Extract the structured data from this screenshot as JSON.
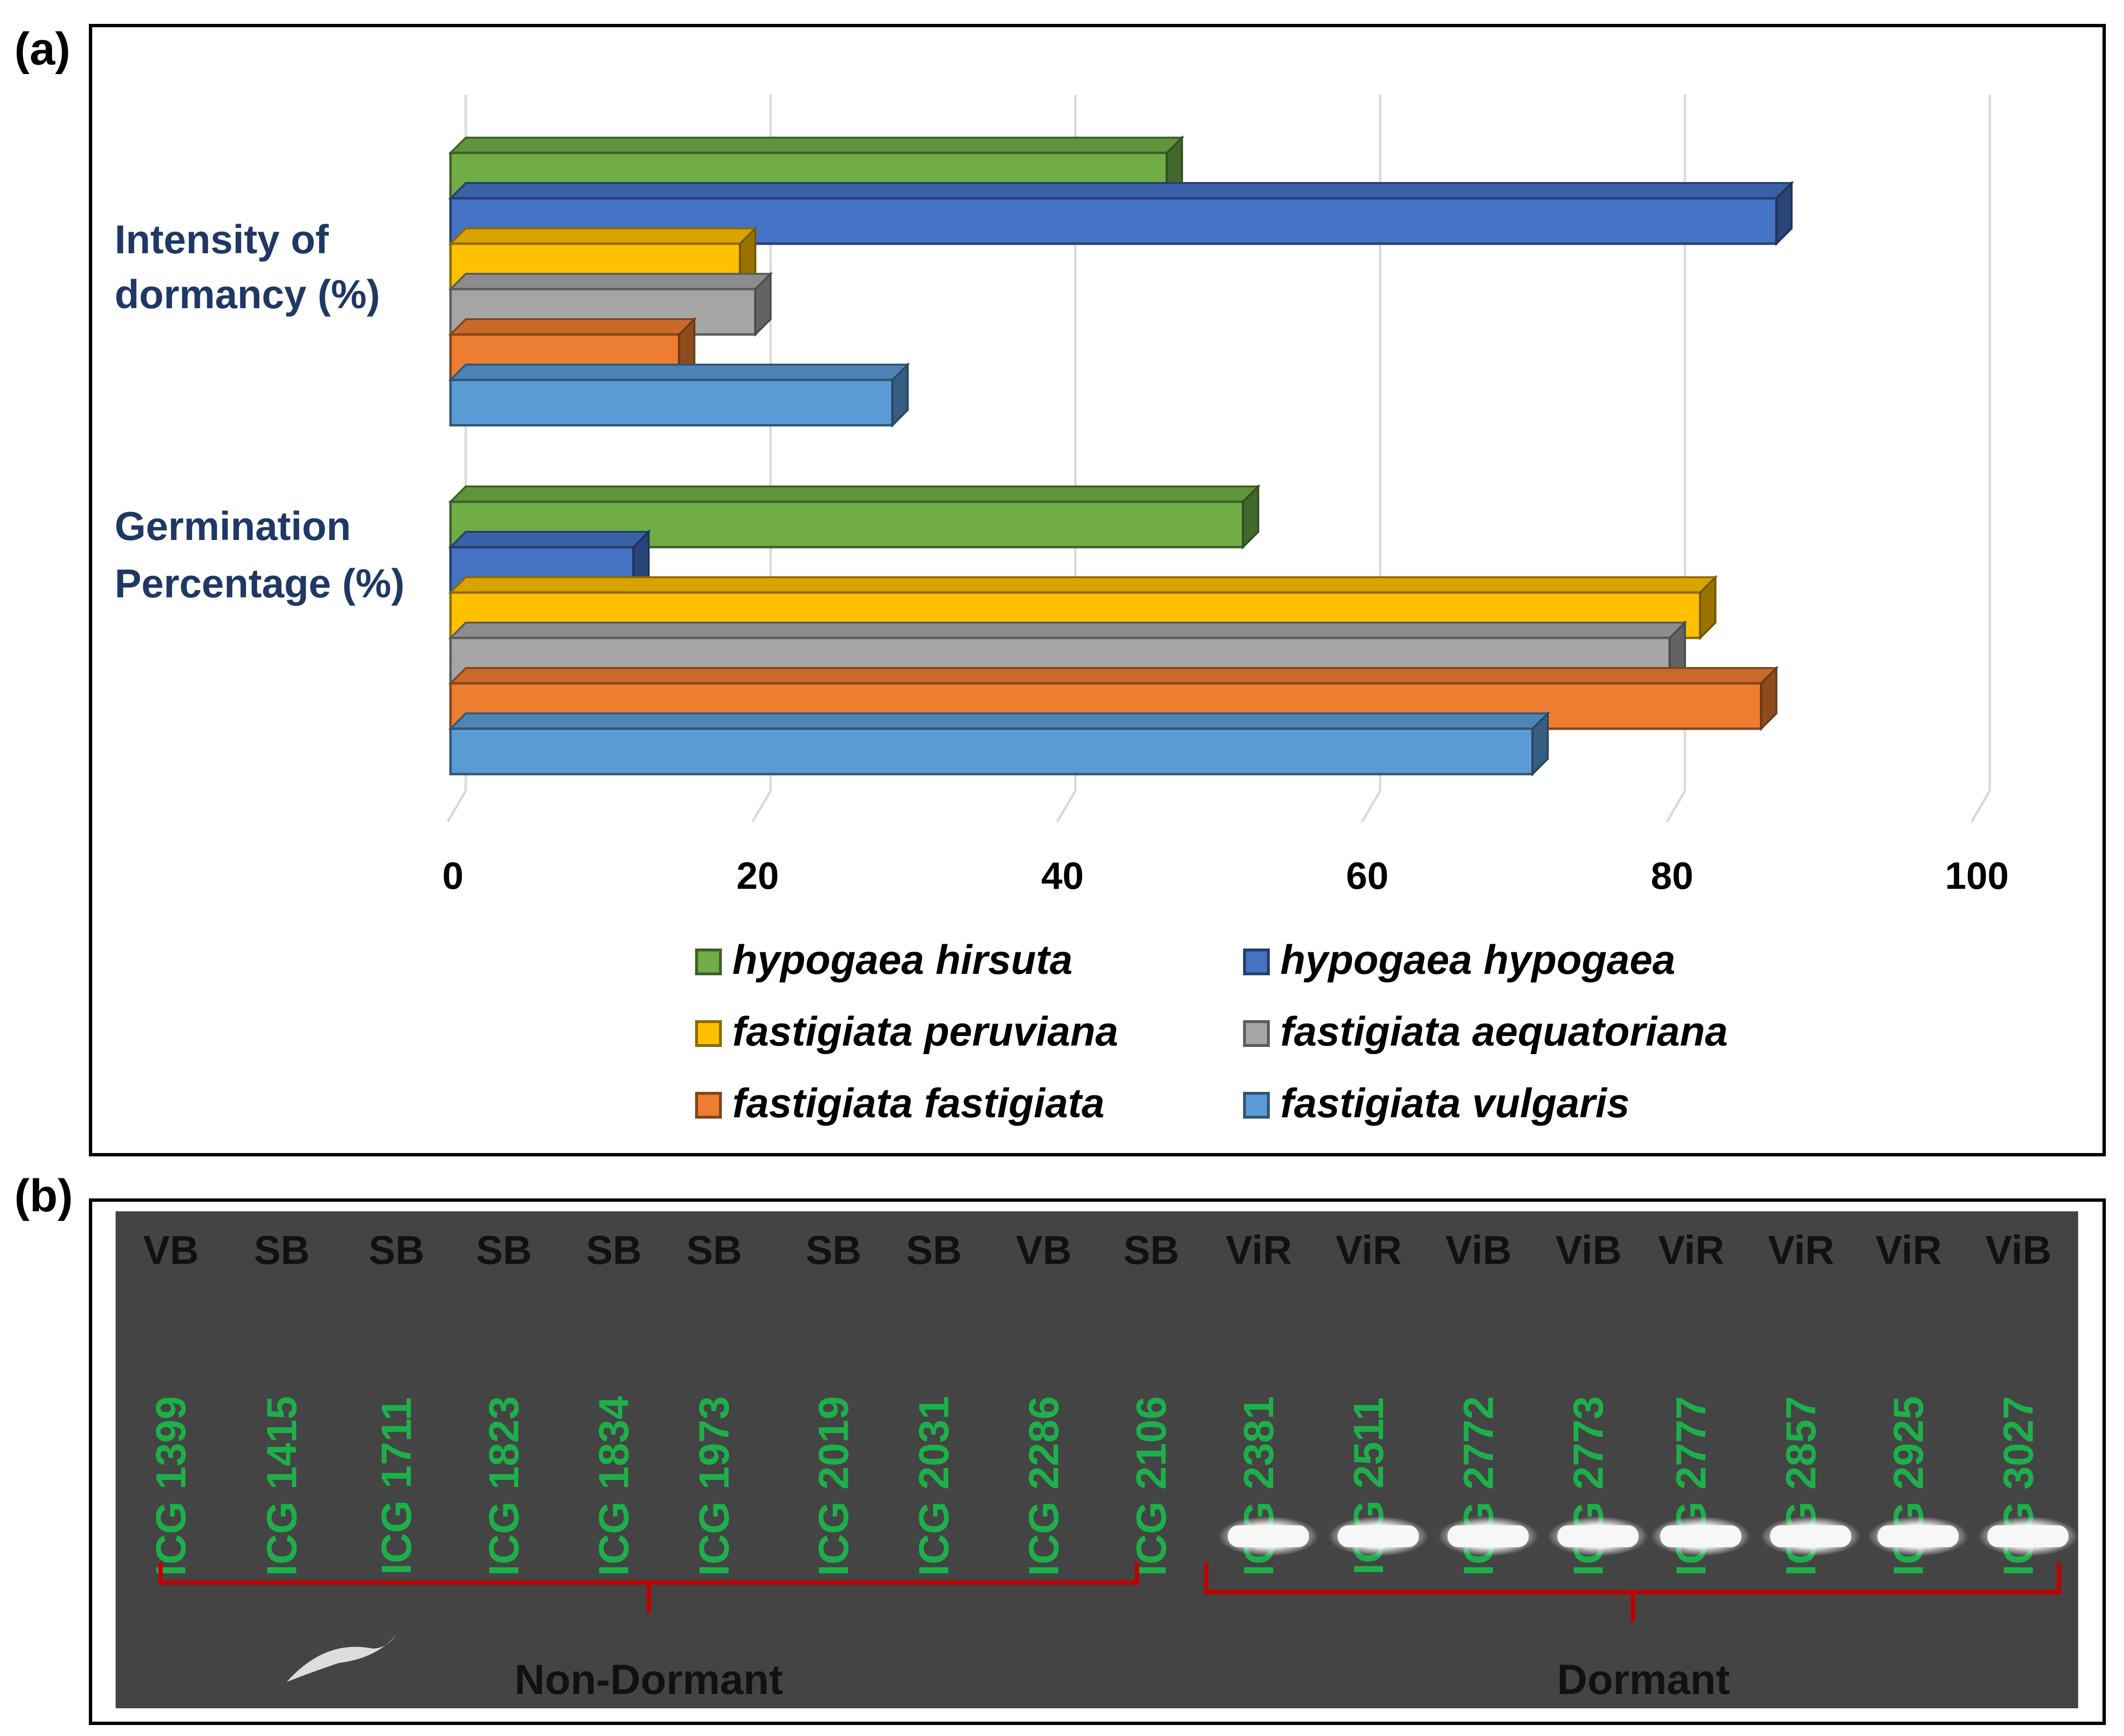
{
  "panel_a": {
    "label": "(a)",
    "chart_data": {
      "type": "bar",
      "orientation": "horizontal",
      "categories": [
        "Intensity of dormancy (%)",
        "Germination Percentage (%)"
      ],
      "category_lines": [
        [
          "Intensity of",
          "dormancy (%)"
        ],
        [
          "Germination",
          "Percentage (%)"
        ]
      ],
      "series": [
        {
          "name": "hypogaea hirsuta",
          "color": "#70ad47",
          "values": [
            47,
            52
          ]
        },
        {
          "name": "hypogaea hypogaea",
          "color": "#4472c4",
          "values": [
            87,
            12
          ]
        },
        {
          "name": "fastigiata peruviana",
          "color": "#ffc000",
          "values": [
            19,
            82
          ]
        },
        {
          "name": "fastigiata aequatoriana",
          "color": "#a5a5a5",
          "values": [
            20,
            80
          ]
        },
        {
          "name": "fastigiata fastigiata",
          "color": "#ed7d31",
          "values": [
            15,
            86
          ]
        },
        {
          "name": "fastigiata vulgaris",
          "color": "#5b9bd5",
          "values": [
            29,
            71
          ]
        }
      ],
      "xlim": [
        0,
        100
      ],
      "xticks": [
        "0",
        "20",
        "40",
        "60",
        "80",
        "100"
      ],
      "grid": true,
      "legend": "bottom",
      "title": "",
      "xlabel": "",
      "ylabel": ""
    }
  },
  "panel_b": {
    "label": "(b)",
    "lane_types": [
      "VB",
      "SB",
      "SB",
      "SB",
      "SB",
      "SB",
      "SB",
      "SB",
      "VB",
      "SB",
      "ViR",
      "ViR",
      "ViB",
      "ViB",
      "ViR",
      "ViR",
      "ViR",
      "ViB"
    ],
    "lane_ids": [
      "ICG 1399",
      "ICG 1415",
      "ICG 1711",
      "ICG 1823",
      "ICG 1834",
      "ICG 1973",
      "ICG 2019",
      "ICG 2031",
      "ICG 2286",
      "ICG 2106",
      "ICG 2381",
      "ICG 2511",
      "ICG 2772",
      "ICG 2773",
      "ICG 2777",
      "ICG 2857",
      "ICG 2925",
      "ICG 3027"
    ],
    "band_present": [
      false,
      false,
      false,
      false,
      false,
      false,
      false,
      false,
      false,
      false,
      true,
      true,
      true,
      true,
      true,
      true,
      true,
      true
    ],
    "group_non_dormant": "Non-Dormant",
    "group_dormant": "Dormant",
    "label_color": "#1db04a",
    "bracket_color": "#c00000"
  }
}
